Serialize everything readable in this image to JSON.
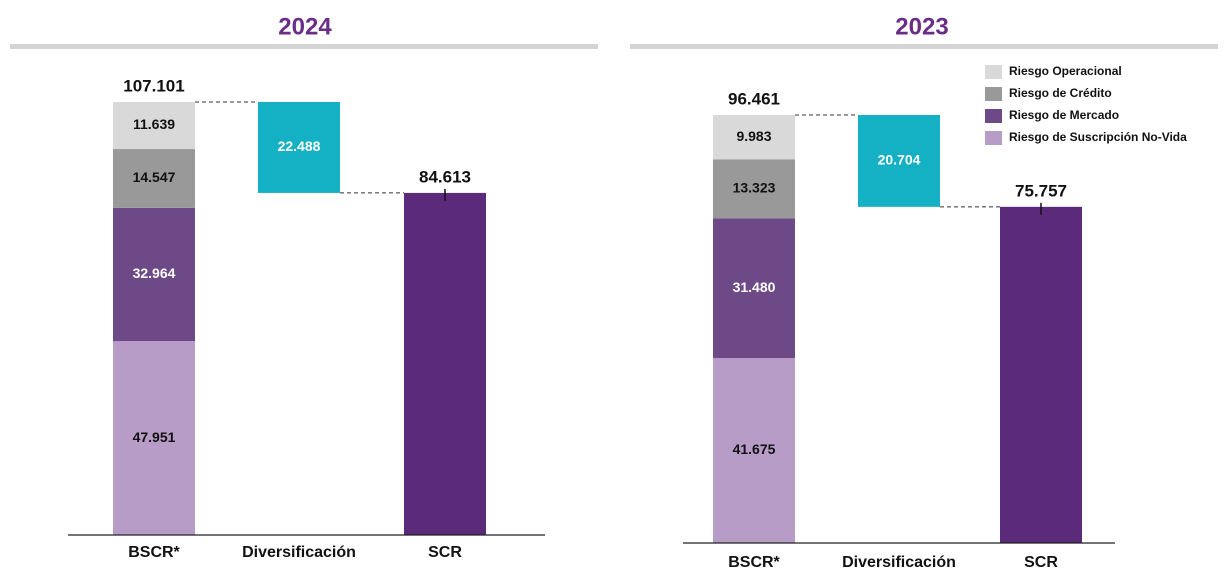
{
  "chart_data": [
    {
      "type": "waterfall",
      "title": "2024",
      "categories": [
        "BSCR*",
        "Diversificación",
        "SCR"
      ],
      "segments": [
        {
          "color": "#b89cc8",
          "value": 47.951,
          "value_label": "47.951"
        },
        {
          "color": "#6d4a87",
          "value": 32.964,
          "value_label": "32.964"
        },
        {
          "color": "#999999",
          "value": 14.547,
          "value_label": "14.547"
        },
        {
          "color": "#d9d9d9",
          "value": 11.639,
          "value_label": "11.639"
        }
      ],
      "total": 107.101,
      "total_label": "107.101",
      "diversification": 22.488,
      "diversification_label": "22.488",
      "diversification_color": "#14b0c4",
      "scr": 84.613,
      "scr_label": "84.613",
      "scr_color": "#5b2a7a",
      "legend": false
    },
    {
      "type": "waterfall",
      "title": "2023",
      "categories": [
        "BSCR*",
        "Diversificación",
        "SCR"
      ],
      "segments": [
        {
          "name": "Riesgo de Suscripción No-Vida",
          "color": "#b89cc8",
          "value": 41.675,
          "value_label": "41.675"
        },
        {
          "name": "Riesgo de Mercado",
          "color": "#6d4a87",
          "value": 31.48,
          "value_label": "31.480"
        },
        {
          "name": "Riesgo de Crédito",
          "color": "#999999",
          "value": 13.323,
          "value_label": "13.323"
        },
        {
          "name": "Riesgo Operacional",
          "color": "#d9d9d9",
          "value": 9.983,
          "value_label": "9.983"
        }
      ],
      "total": 96.461,
      "total_label": "96.461",
      "diversification": 20.704,
      "diversification_label": "20.704",
      "diversification_color": "#14b0c4",
      "scr": 75.757,
      "scr_label": "75.757",
      "scr_color": "#5b2a7a",
      "legend": true
    }
  ]
}
